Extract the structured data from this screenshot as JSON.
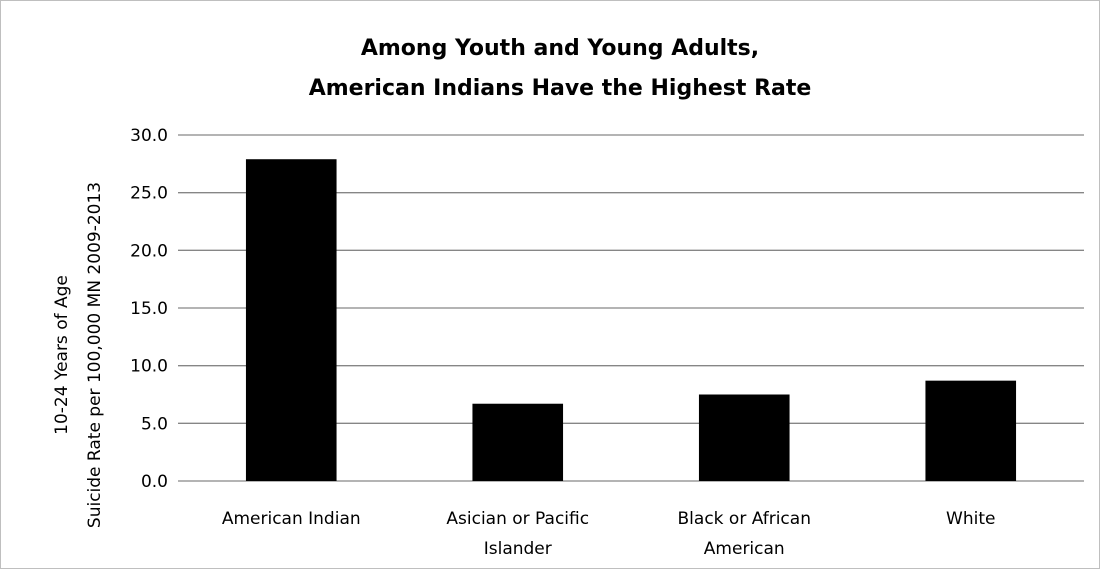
{
  "chart_data": {
    "type": "bar",
    "title": [
      "Among Youth and Young Adults,",
      "American Indians Have the Highest Rate"
    ],
    "ylabel": [
      "Suicide Rate per 100,000 MN 2009-2013",
      "10-24 Years of Age"
    ],
    "xlabel": "",
    "categories": [
      [
        "American Indian"
      ],
      [
        "Asician or Pacific",
        "Islander"
      ],
      [
        "Black or African",
        "American"
      ],
      [
        "White"
      ]
    ],
    "values": [
      27.9,
      6.7,
      7.5,
      8.7
    ],
    "ylim": [
      0,
      30
    ],
    "yticks": [
      "0.0",
      "5.0",
      "10.0",
      "15.0",
      "20.0",
      "25.0",
      "30.0"
    ],
    "grid": true,
    "legend": "none",
    "bar_color": "#000000"
  }
}
